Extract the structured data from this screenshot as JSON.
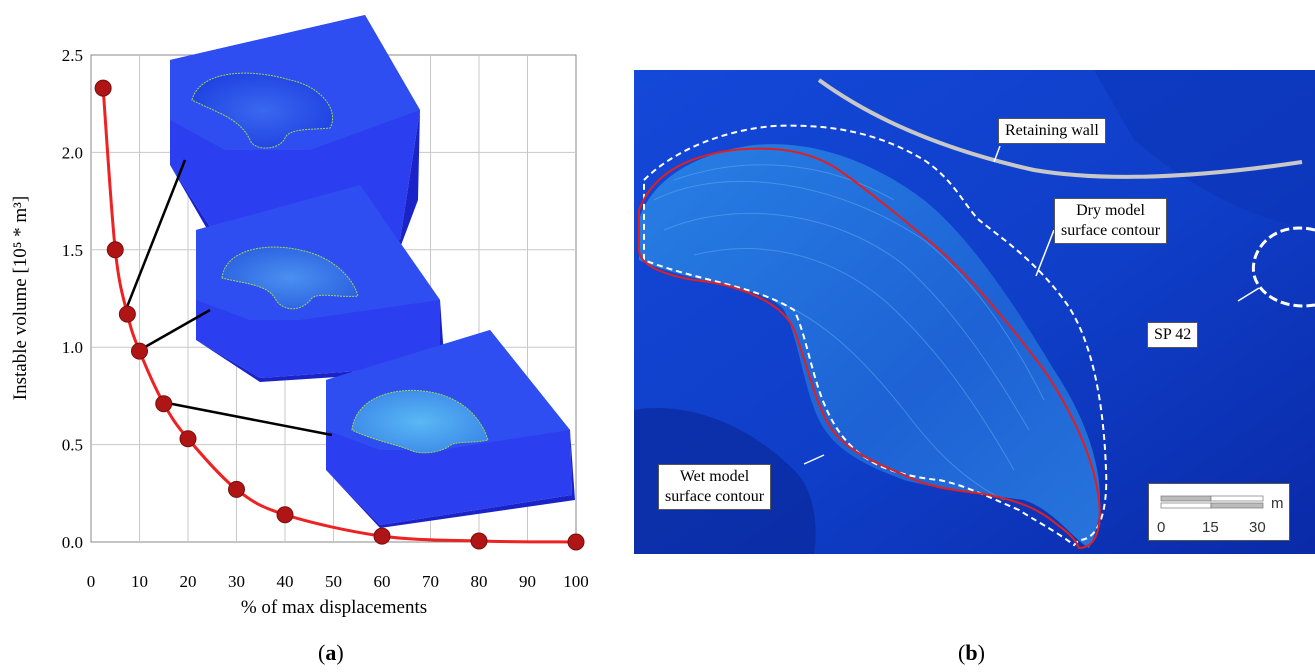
{
  "chart_data": {
    "type": "line",
    "title": "",
    "xlabel": "% of max displacements",
    "ylabel": "Instable volume [10⁵ * m³]",
    "xlim": [
      0,
      100
    ],
    "ylim": [
      0,
      2.5
    ],
    "x_ticks": [
      "0",
      "10",
      "20",
      "30",
      "40",
      "50",
      "60",
      "70",
      "80",
      "90",
      "100"
    ],
    "y_ticks": [
      "0.0",
      "0.5",
      "1.0",
      "1.5",
      "2.0",
      "2.5"
    ],
    "grid": true,
    "colors": {
      "line": "#ee2222",
      "marker": "#b01515"
    },
    "series": [
      {
        "x": [
          2.5,
          5,
          7.5,
          10,
          15,
          20,
          30,
          40,
          60,
          80,
          100
        ],
        "y": [
          2.33,
          1.5,
          1.17,
          0.98,
          0.71,
          0.53,
          0.27,
          0.14,
          0.03,
          0.005,
          0.0
        ]
      }
    ]
  },
  "panel_a_label": "a",
  "panel_b_label": "b",
  "map": {
    "labels": {
      "retaining_wall": "Retaining wall",
      "dry_contour_1": "Dry model",
      "dry_contour_2": "surface contour",
      "sp": "SP 42",
      "wet_contour_1": "Wet model",
      "wet_contour_2": "surface contour"
    },
    "scale": {
      "unit": "m",
      "ticks": [
        "0",
        "15",
        "30"
      ]
    },
    "colors": {
      "wet_contour": "#e02020",
      "dry_contour": "#ffffff",
      "wall": "#c8c8c8"
    }
  }
}
